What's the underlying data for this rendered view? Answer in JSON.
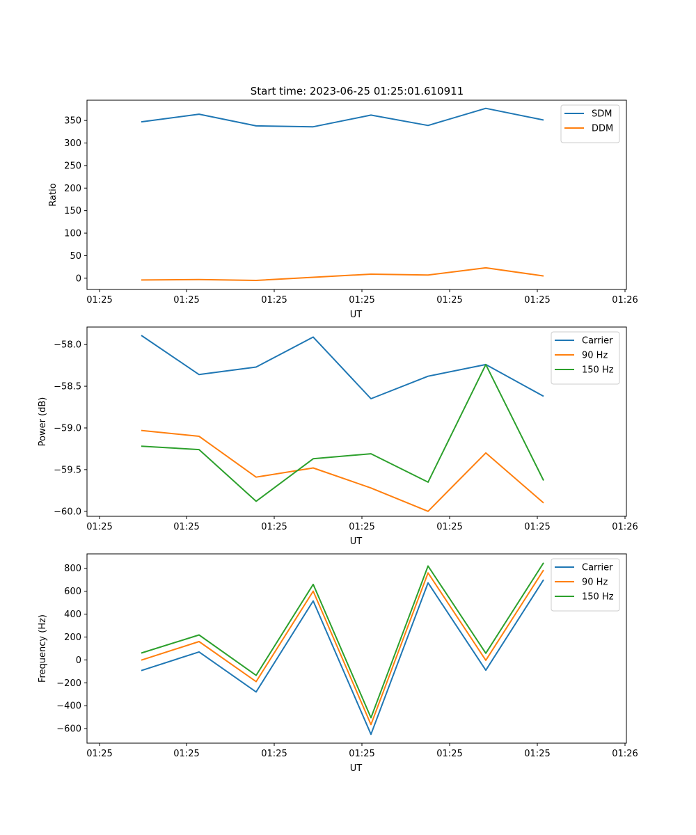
{
  "figure": {
    "title": "Start time: 2023-06-25 01:25:01.610911"
  },
  "chart_data": [
    {
      "type": "line",
      "xlabel": "UT",
      "ylabel": "Ratio",
      "x_tick_labels": [
        "01:25",
        "01:25",
        "01:25",
        "01:25",
        "01:25",
        "01:25",
        "01:26"
      ],
      "ylim": [
        -25,
        395
      ],
      "yticks": [
        0,
        50,
        100,
        150,
        200,
        250,
        300,
        350
      ],
      "legend_position": "top-right",
      "grid": false,
      "series": [
        {
          "name": "SDM",
          "color": "#1f77b4",
          "values": [
            347,
            364,
            338,
            336,
            362,
            339,
            377,
            351
          ]
        },
        {
          "name": "DDM",
          "color": "#ff7f0e",
          "values": [
            -4,
            -3,
            -5,
            2,
            9,
            7,
            23,
            5
          ]
        }
      ]
    },
    {
      "type": "line",
      "xlabel": "UT",
      "ylabel": "Power (dB)",
      "x_tick_labels": [
        "01:25",
        "01:25",
        "01:25",
        "01:25",
        "01:25",
        "01:25",
        "01:26"
      ],
      "ylim": [
        -60.06,
        -57.79
      ],
      "yticks": [
        -60.0,
        -59.5,
        -59.0,
        -58.5,
        -58.0
      ],
      "ytick_labels": [
        "−60.0",
        "−59.5",
        "−59.0",
        "−58.5",
        "−58.0"
      ],
      "legend_position": "top-right",
      "grid": false,
      "series": [
        {
          "name": "Carrier",
          "color": "#1f77b4",
          "values": [
            -57.89,
            -58.36,
            -58.27,
            -57.91,
            -58.65,
            -58.38,
            -58.24,
            -58.62
          ]
        },
        {
          "name": "90 Hz",
          "color": "#ff7f0e",
          "values": [
            -59.03,
            -59.1,
            -59.59,
            -59.48,
            -59.72,
            -60.0,
            -59.3,
            -59.9
          ]
        },
        {
          "name": "150 Hz",
          "color": "#2ca02c",
          "values": [
            -59.22,
            -59.26,
            -59.88,
            -59.37,
            -59.31,
            -59.65,
            -58.24,
            -59.63
          ]
        }
      ]
    },
    {
      "type": "line",
      "xlabel": "UT",
      "ylabel": "Frequency (Hz)",
      "x_tick_labels": [
        "01:25",
        "01:25",
        "01:25",
        "01:25",
        "01:25",
        "01:25",
        "01:26"
      ],
      "ylim": [
        -727,
        926
      ],
      "yticks": [
        -600,
        -400,
        -200,
        0,
        200,
        400,
        600,
        800
      ],
      "ytick_labels": [
        "−600",
        "−400",
        "−200",
        "0",
        "200",
        "400",
        "600",
        "800"
      ],
      "legend_position": "top-right",
      "grid": false,
      "series": [
        {
          "name": "Carrier",
          "color": "#1f77b4",
          "values": [
            -93,
            70,
            -280,
            515,
            -650,
            673,
            -90,
            700
          ]
        },
        {
          "name": "90 Hz",
          "color": "#ff7f0e",
          "values": [
            -2,
            160,
            -190,
            600,
            -565,
            760,
            -3,
            785
          ]
        },
        {
          "name": "150 Hz",
          "color": "#2ca02c",
          "values": [
            60,
            218,
            -135,
            660,
            -505,
            820,
            58,
            848
          ]
        }
      ]
    }
  ]
}
